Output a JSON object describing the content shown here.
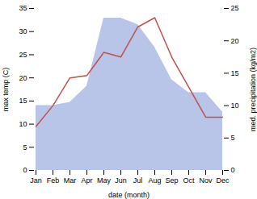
{
  "chart_data": {
    "type": "line",
    "categories": [
      "Jan",
      "Feb",
      "Mar",
      "Apr",
      "May",
      "Jun",
      "Jul",
      "Aug",
      "Sep",
      "Oct",
      "Nov",
      "Dec"
    ],
    "xlabel": "date (month)",
    "ylabel": "max temp (C)",
    "y2label": "med. precipitation (kg/m2)",
    "series": [
      {
        "type": "area",
        "axis": "y2",
        "color": "#b8c4e8",
        "values": [
          10.0,
          10.0,
          10.5,
          13.0,
          23.5,
          23.5,
          22.5,
          19.0,
          14.0,
          12.0,
          12.0,
          9.0
        ]
      },
      {
        "type": "line",
        "color": "#c0504d",
        "values": [
          9.5,
          14.0,
          20.0,
          20.5,
          25.5,
          24.5,
          31.0,
          33.0,
          24.5,
          18.0,
          11.5,
          11.5
        ]
      }
    ],
    "ylim": [
      0,
      35
    ],
    "yticks": [
      0,
      5,
      10,
      15,
      20,
      25,
      30,
      35
    ],
    "y2lim": [
      0,
      25
    ],
    "y2ticks": [
      0,
      5,
      10,
      15,
      20,
      25
    ]
  }
}
